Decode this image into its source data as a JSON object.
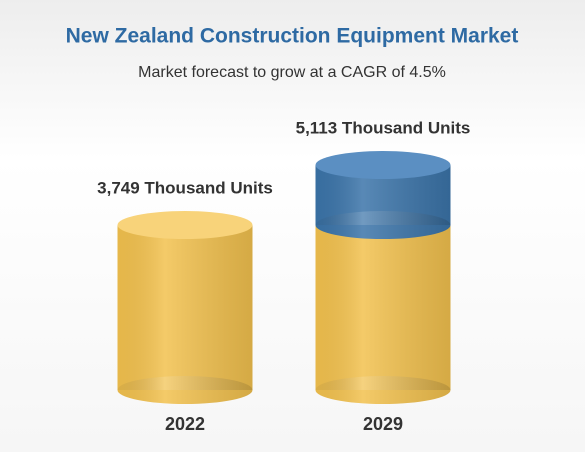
{
  "chart_data": {
    "type": "bar",
    "title": "New Zealand Construction Equipment Market",
    "subtitle": "Market forecast to grow at a CAGR of 4.5%",
    "categories": [
      "2022",
      "2029"
    ],
    "values": [
      3749,
      5113
    ],
    "value_labels": [
      "3,749 Thousand Units",
      "5,113 Thousand Units"
    ],
    "color": "#f2c14e",
    "growth_color": "#3b74a9"
  }
}
